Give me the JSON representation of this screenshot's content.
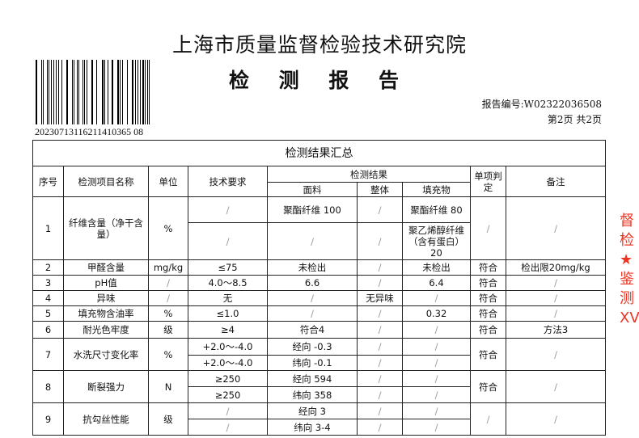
{
  "header": {
    "institute": "上海市质量监督检验技术研究院",
    "report_type": "检 测 报 告",
    "barcode_number": "20230713116211410365 08",
    "report_no": "报告编号:W02322036508",
    "page": "第2页  共2页"
  },
  "table": {
    "title": "检测结果汇总",
    "headers": {
      "no": "序号",
      "item": "检测项目名称",
      "unit": "单位",
      "req": "技术要求",
      "result": "检测结果",
      "fabric": "面料",
      "whole": "整体",
      "filling": "填充物",
      "judge": "单项判定",
      "remark": "备注"
    },
    "rows": [
      {
        "no": "1",
        "item": "纤维含量（净干含量）",
        "unit": "%",
        "sub": [
          [
            "/",
            "聚酯纤维 100",
            "/",
            "聚酯纤维 80"
          ],
          [
            "/",
            "/",
            "/",
            "聚乙烯醇纤维（含有蛋白）20"
          ]
        ],
        "judge": "/",
        "remark": "/"
      },
      {
        "no": "2",
        "item": "甲醛含量",
        "unit": "mg/kg",
        "sub": [
          [
            "≤75",
            "未检出",
            "/",
            "未检出"
          ]
        ],
        "judge": "符合",
        "remark": "检出限20mg/kg"
      },
      {
        "no": "3",
        "item": "pH值",
        "unit": "/",
        "sub": [
          [
            "4.0～8.5",
            "6.6",
            "/",
            "6.4"
          ]
        ],
        "judge": "符合",
        "remark": "/"
      },
      {
        "no": "4",
        "item": "异味",
        "unit": "/",
        "sub": [
          [
            "无",
            "/",
            "无异味",
            "/"
          ]
        ],
        "judge": "符合",
        "remark": "/"
      },
      {
        "no": "5",
        "item": "填充物含油率",
        "unit": "%",
        "sub": [
          [
            "≤1.0",
            "/",
            "/",
            "0.32"
          ]
        ],
        "judge": "符合",
        "remark": "/"
      },
      {
        "no": "6",
        "item": "耐光色牢度",
        "unit": "级",
        "sub": [
          [
            "≥4",
            "符合4",
            "/",
            "/"
          ]
        ],
        "judge": "符合",
        "remark": "方法3"
      },
      {
        "no": "7",
        "item": "水洗尺寸变化率",
        "unit": "%",
        "sub": [
          [
            "+2.0～-4.0",
            "经向 -0.3",
            "/",
            "/"
          ],
          [
            "+2.0～-4.0",
            "纬向 -0.1",
            "/",
            "/"
          ]
        ],
        "judge": "符合",
        "remark": "/"
      },
      {
        "no": "8",
        "item": "断裂强力",
        "unit": "N",
        "sub": [
          [
            "≥250",
            "经向 594",
            "/",
            "/"
          ],
          [
            "≥250",
            "纬向 358",
            "/",
            "/"
          ]
        ],
        "judge": "符合",
        "remark": "/"
      },
      {
        "no": "9",
        "item": "抗勾丝性能",
        "unit": "级",
        "sub": [
          [
            "/",
            "经向 3",
            "/",
            "/"
          ],
          [
            "/",
            "纬向 3-4",
            "/",
            "/"
          ]
        ],
        "judge": "/",
        "remark": "/"
      }
    ]
  },
  "stamp": {
    "text": "督检 ★ 鉴测 XV"
  },
  "colors": {
    "stamp": "#e32222"
  }
}
